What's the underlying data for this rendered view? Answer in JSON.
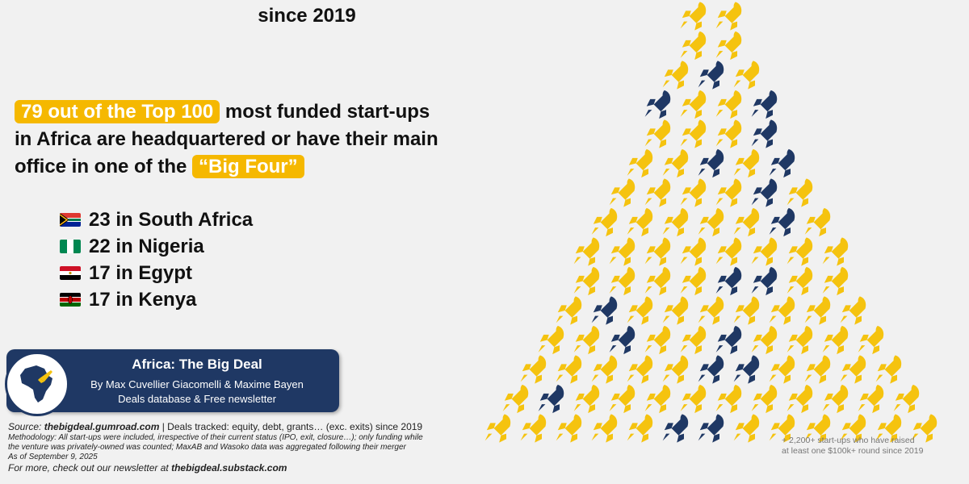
{
  "header": {
    "title_fragment": "since 2019"
  },
  "headline": {
    "highlight1": "79 out of the Top 100",
    "text1": " most funded start-ups",
    "text2": "in Africa are headquartered or have their main",
    "text3": "office in one of the ",
    "highlight2": "“Big Four”"
  },
  "countries": [
    {
      "label": "23 in South Africa",
      "flag": "south-africa"
    },
    {
      "label": "22 in Nigeria",
      "flag": "nigeria"
    },
    {
      "label": "17 in Egypt",
      "flag": "egypt"
    },
    {
      "label": "17 in Kenya",
      "flag": "kenya"
    }
  ],
  "banner": {
    "title": "Africa: The Big Deal",
    "authors": "By Max Cuvellier Giacomelli & Maxime Bayen",
    "tagline": "Deals database & Free newsletter"
  },
  "source": {
    "prefix": "Source: ",
    "site": "thebigdeal.gumroad.com",
    "deals": " | Deals tracked: equity, debt, grants… (exc. exits) since 2019",
    "methodology1": "Methodology: All start-ups were included, irrespective of their current status (IPO, exit, closure…); only funding while",
    "methodology2": "the venture was privately-owned was counted; MaxAB and Wasoko data was aggregated following their merger",
    "asof": "As of September 9, 2025",
    "more_prefix": "For more, check out our newsletter at ",
    "newsletter": "thebigdeal.substack.com"
  },
  "footnote": {
    "line1": "+ 2,200+ start-ups who have raised",
    "line2": "at least one $100k+ round since 2019"
  },
  "colors": {
    "accent": "#f5b800",
    "navy": "#1f3864",
    "rocket_yellow": "#f5c30f",
    "rocket_navy": "#1f3864"
  },
  "rocket_rows": [
    "YY",
    "YY",
    "YNY",
    "NYYN",
    "YYYN",
    "YYNYN",
    "YYYYNY",
    "YYYYYNY",
    "YYYYYYYY",
    "YYYYNNYY",
    "YNYYYYYYY",
    "YYNYYNYYYY",
    "YYYYYNNYYYY",
    "YNYYYYYYYYYY",
    "YYYYYNNYYYYYY"
  ]
}
